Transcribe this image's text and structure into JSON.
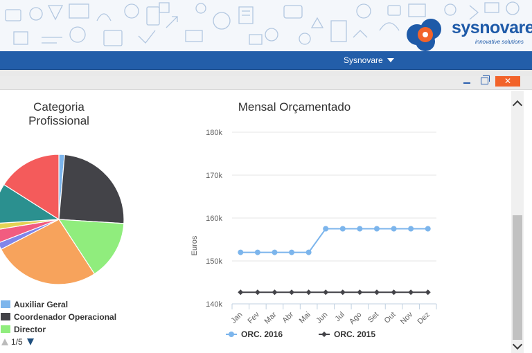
{
  "header": {
    "logo_text": "sysnovare",
    "logo_subtitle": "innovative solutions",
    "user_menu_label": "Sysnovare",
    "close_label": "✕"
  },
  "colors": {
    "navbar": "#235ea9",
    "close_button": "#f2632a",
    "series_2016": "#7cb5ec",
    "series_2015": "#434348"
  },
  "pie_chart": {
    "title_line1": "Categoria",
    "title_line2": "Profissional",
    "legend": [
      {
        "label": "Auxiliar Geral",
        "color": "#7cb5ec"
      },
      {
        "label": "Coordenador Operacional",
        "color": "#434348"
      },
      {
        "label": "Director",
        "color": "#90ed7d"
      }
    ],
    "pager": "1/5"
  },
  "chart_data": [
    {
      "type": "pie",
      "title": "Categoria Profissional",
      "slices": [
        {
          "name": "Auxiliar Geral",
          "value": 1.4,
          "color": "#7cb5ec"
        },
        {
          "name": "Coordenador Operacional",
          "value": 24.6,
          "color": "#434348"
        },
        {
          "name": "Director",
          "value": 14.8,
          "color": "#90ed7d"
        },
        {
          "name": "",
          "value": 26.6,
          "color": "#f7a35c"
        },
        {
          "name": "",
          "value": 1.7,
          "color": "#8085e9"
        },
        {
          "name": "",
          "value": 3.3,
          "color": "#f15c80"
        },
        {
          "name": "",
          "value": 1.6,
          "color": "#e4d354"
        },
        {
          "name": "",
          "value": 10.0,
          "color": "#2b908f"
        },
        {
          "name": "",
          "value": 16.0,
          "color": "#f45b5b"
        }
      ]
    },
    {
      "type": "line",
      "title": "Mensal Orçamentado",
      "ylabel": "Euros",
      "categories": [
        "Jan",
        "Fev",
        "Mar",
        "Abr",
        "Mai",
        "Jun",
        "Jul",
        "Ago",
        "Set",
        "Out",
        "Nov",
        "Dez"
      ],
      "ylim": [
        140000,
        180000
      ],
      "yticks": [
        140000,
        150000,
        160000,
        170000,
        180000
      ],
      "ytick_labels": [
        "140k",
        "150k",
        "160k",
        "170k",
        "180k"
      ],
      "grid": true,
      "legend_position": "bottom",
      "series": [
        {
          "name": "ORC. 2016",
          "color": "#7cb5ec",
          "marker": "circle",
          "values": [
            152000,
            152000,
            152000,
            152000,
            152000,
            157500,
            157500,
            157500,
            157500,
            157500,
            157500,
            157500
          ]
        },
        {
          "name": "ORC. 2015",
          "color": "#434348",
          "marker": "diamond",
          "values": [
            142700,
            142700,
            142700,
            142700,
            142700,
            142700,
            142700,
            142700,
            142700,
            142700,
            142700,
            142700
          ]
        }
      ]
    }
  ]
}
